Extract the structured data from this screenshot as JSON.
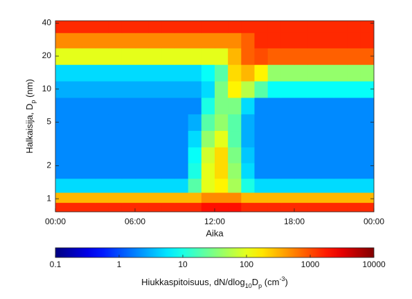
{
  "chart_data": {
    "type": "heatmap",
    "xlabel": "Aika",
    "ylabel": [
      "Halkaisija, D",
      "p",
      " (nm)"
    ],
    "colorbar_label": [
      "Hiukkaspitoisuus, dN/dlog",
      "10",
      "D",
      "p",
      " (cm",
      "-3",
      ")"
    ],
    "colormap": "jet",
    "ylog": true,
    "xlim": [
      0,
      24
    ],
    "ylim": [
      0.76,
      42
    ],
    "xticks": [
      {
        "value": 0,
        "label": "00:00"
      },
      {
        "value": 6,
        "label": "06:00"
      },
      {
        "value": 12,
        "label": "12:00"
      },
      {
        "value": 18,
        "label": "18:00"
      },
      {
        "value": 24,
        "label": "00:00"
      }
    ],
    "yticks": [
      1,
      2,
      5,
      10,
      20,
      40
    ],
    "clim": [
      0.1,
      10000
    ],
    "cticks": [
      0.1,
      1,
      10,
      100,
      1000,
      10000
    ],
    "x": [
      0.5,
      1.5,
      2.5,
      3.5,
      4.5,
      5.5,
      6.5,
      7.5,
      8.5,
      9.5,
      10.5,
      11.5,
      12.5,
      13.5,
      14.5,
      15.5,
      16.5,
      17.5,
      18.5,
      19.5,
      20.5,
      21.5,
      22.5,
      23.5
    ],
    "y": [
      0.85,
      1.0,
      1.3,
      1.8,
      2.5,
      3.5,
      5,
      7,
      10,
      14,
      20,
      28,
      38
    ],
    "z": [
      [
        1500,
        1500,
        1500,
        1500,
        1500,
        1500,
        1500,
        1500,
        1500,
        1500,
        1500,
        2000,
        2000,
        2000,
        1500,
        1500,
        1500,
        1500,
        1500,
        1500,
        1500,
        1500,
        1500,
        1500
      ],
      [
        300,
        300,
        300,
        300,
        300,
        300,
        300,
        300,
        300,
        300,
        300,
        500,
        500,
        500,
        300,
        300,
        300,
        300,
        300,
        300,
        300,
        300,
        300,
        300
      ],
      [
        5,
        5,
        5,
        5,
        5,
        5,
        5,
        5,
        5,
        5,
        20,
        100,
        150,
        50,
        10,
        5,
        5,
        5,
        5,
        5,
        5,
        5,
        5,
        5
      ],
      [
        2,
        2,
        2,
        2,
        2,
        2,
        2,
        2,
        2,
        2,
        10,
        100,
        200,
        40,
        5,
        2,
        2,
        2,
        2,
        2,
        2,
        2,
        2,
        2
      ],
      [
        2,
        2,
        2,
        2,
        2,
        2,
        2,
        2,
        2,
        2,
        8,
        80,
        200,
        30,
        4,
        2,
        2,
        2,
        2,
        2,
        2,
        2,
        2,
        2
      ],
      [
        2,
        2,
        2,
        2,
        2,
        2,
        2,
        2,
        2,
        2,
        5,
        40,
        100,
        20,
        3,
        2,
        2,
        2,
        2,
        2,
        2,
        2,
        2,
        2
      ],
      [
        2,
        2,
        2,
        2,
        2,
        2,
        2,
        2,
        2,
        2,
        3,
        20,
        40,
        20,
        3,
        2,
        2,
        2,
        2,
        2,
        2,
        2,
        2,
        2
      ],
      [
        2,
        2,
        2,
        2,
        2,
        2,
        2,
        2,
        2,
        2,
        2,
        10,
        30,
        30,
        5,
        2,
        2,
        2,
        2,
        2,
        2,
        2,
        2,
        2
      ],
      [
        3,
        3,
        3,
        3,
        3,
        3,
        3,
        3,
        3,
        3,
        3,
        5,
        30,
        150,
        60,
        20,
        8,
        8,
        8,
        8,
        8,
        8,
        8,
        8
      ],
      [
        5,
        5,
        5,
        5,
        5,
        5,
        5,
        5,
        5,
        5,
        5,
        8,
        20,
        200,
        300,
        150,
        40,
        40,
        40,
        40,
        40,
        40,
        40,
        40
      ],
      [
        100,
        100,
        100,
        100,
        100,
        100,
        100,
        100,
        100,
        100,
        100,
        100,
        100,
        300,
        800,
        1000,
        800,
        800,
        800,
        800,
        800,
        800,
        800,
        800
      ],
      [
        500,
        500,
        500,
        500,
        500,
        500,
        500,
        500,
        500,
        500,
        500,
        500,
        500,
        500,
        800,
        1500,
        1500,
        1500,
        1500,
        1500,
        1500,
        1500,
        1500,
        1500
      ],
      [
        1500,
        1500,
        1500,
        1500,
        1500,
        1500,
        1500,
        1500,
        1500,
        1500,
        1500,
        1500,
        1500,
        1500,
        1500,
        1500,
        1500,
        1500,
        1500,
        1500,
        1500,
        1500,
        1500,
        1500
      ]
    ]
  }
}
